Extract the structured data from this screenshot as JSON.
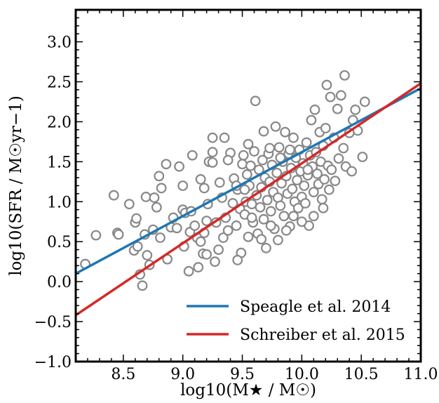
{
  "chart_data": {
    "type": "scatter",
    "title": "",
    "xlabel": "log10(M★ / M☉)",
    "ylabel": "log10(SFR / M☉yr−1)",
    "xlim": [
      8.1,
      11.0
    ],
    "ylim": [
      -1.0,
      3.4
    ],
    "x_ticks": [
      8.5,
      9.0,
      9.5,
      10.0,
      10.5,
      11.0
    ],
    "x_tick_labels": [
      "8.5",
      "9.0",
      "9.5",
      "10.0",
      "10.5",
      "11.0"
    ],
    "y_ticks": [
      -1.0,
      -0.5,
      0.0,
      0.5,
      1.0,
      1.5,
      2.0,
      2.5,
      3.0
    ],
    "y_tick_labels": [
      "−1.0",
      "−0.5",
      "0.0",
      "0.5",
      "1.0",
      "1.5",
      "2.0",
      "2.5",
      "3.0"
    ],
    "grid": false,
    "legend_position": "bottom-right",
    "marker_color": "#888888",
    "points": [
      [
        8.18,
        0.22
      ],
      [
        8.27,
        0.58
      ],
      [
        8.42,
        1.08
      ],
      [
        8.45,
        0.61
      ],
      [
        8.46,
        0.59
      ],
      [
        8.55,
        0.97
      ],
      [
        8.59,
        0.39
      ],
      [
        8.6,
        0.74
      ],
      [
        8.61,
        0.79
      ],
      [
        8.62,
        0.44
      ],
      [
        8.64,
        0.09
      ],
      [
        8.66,
        -0.05
      ],
      [
        8.68,
        0.59
      ],
      [
        8.69,
        1.06
      ],
      [
        8.7,
        0.33
      ],
      [
        8.72,
        0.21
      ],
      [
        8.75,
        0.65
      ],
      [
        8.76,
        1.05
      ],
      [
        8.78,
        0.93
      ],
      [
        8.8,
        1.32
      ],
      [
        8.81,
        0.55
      ],
      [
        8.82,
        1.17
      ],
      [
        8.87,
        0.28
      ],
      [
        8.9,
        0.68
      ],
      [
        8.92,
        0.8
      ],
      [
        8.95,
        0.67
      ],
      [
        9.0,
        0.9
      ],
      [
        9.01,
        0.44
      ],
      [
        9.02,
        0.86
      ],
      [
        9.05,
        0.13
      ],
      [
        9.06,
        0.62
      ],
      [
        9.07,
        0.88
      ],
      [
        9.1,
        0.7
      ],
      [
        9.12,
        0.55
      ],
      [
        9.13,
        0.18
      ],
      [
        9.15,
        0.5
      ],
      [
        9.17,
        0.35
      ],
      [
        9.18,
        0.61
      ],
      [
        9.2,
        0.76
      ],
      [
        9.21,
        0.97
      ],
      [
        9.22,
        1.5
      ],
      [
        9.25,
        1.49
      ],
      [
        9.27,
        0.25
      ],
      [
        9.28,
        0.74
      ],
      [
        9.31,
        1.24
      ],
      [
        9.33,
        1.05
      ],
      [
        9.34,
        0.55
      ],
      [
        9.36,
        0.8
      ],
      [
        9.38,
        0.64
      ],
      [
        9.4,
        1.61
      ],
      [
        9.42,
        0.98
      ],
      [
        9.43,
        1.29
      ],
      [
        9.45,
        0.7
      ],
      [
        9.46,
        1.15
      ],
      [
        9.48,
        0.91
      ],
      [
        9.49,
        0.36
      ],
      [
        9.5,
        1.47
      ],
      [
        9.51,
        1.58
      ],
      [
        9.52,
        0.84
      ],
      [
        9.53,
        1.0
      ],
      [
        9.54,
        1.34
      ],
      [
        9.55,
        0.56
      ],
      [
        9.56,
        1.2
      ],
      [
        9.57,
        1.45
      ],
      [
        9.58,
        0.97
      ],
      [
        9.59,
        0.74
      ],
      [
        9.6,
        1.63
      ],
      [
        9.61,
        2.26
      ],
      [
        9.62,
        1.08
      ],
      [
        9.63,
        0.6
      ],
      [
        9.64,
        1.4
      ],
      [
        9.65,
        0.93
      ],
      [
        9.66,
        1.18
      ],
      [
        9.67,
        1.52
      ],
      [
        9.68,
        0.78
      ],
      [
        9.69,
        1.3
      ],
      [
        9.7,
        0.42
      ],
      [
        9.71,
        1.02
      ],
      [
        9.72,
        1.6
      ],
      [
        9.73,
        1.25
      ],
      [
        9.74,
        0.88
      ],
      [
        9.75,
        1.46
      ],
      [
        9.76,
        1.12
      ],
      [
        9.77,
        0.66
      ],
      [
        9.78,
        1.94
      ],
      [
        9.79,
        1.36
      ],
      [
        9.8,
        1.05
      ],
      [
        9.81,
        1.68
      ],
      [
        9.82,
        0.95
      ],
      [
        9.83,
        1.23
      ],
      [
        9.84,
        1.5
      ],
      [
        9.85,
        0.82
      ],
      [
        9.86,
        1.87
      ],
      [
        9.87,
        1.32
      ],
      [
        9.88,
        1.1
      ],
      [
        9.89,
        1.6
      ],
      [
        9.9,
        0.69
      ],
      [
        9.91,
        1.42
      ],
      [
        9.92,
        1.16
      ],
      [
        9.93,
        1.8
      ],
      [
        9.94,
        1.0
      ],
      [
        9.95,
        1.55
      ],
      [
        9.96,
        1.27
      ],
      [
        9.97,
        0.92
      ],
      [
        9.98,
        1.65
      ],
      [
        9.99,
        1.38
      ],
      [
        10.0,
        1.06
      ],
      [
        10.01,
        1.48
      ],
      [
        10.02,
        1.2
      ],
      [
        10.03,
        0.98
      ],
      [
        10.04,
        1.74
      ],
      [
        10.05,
        1.33
      ],
      [
        10.06,
        0.7
      ],
      [
        10.07,
        1.58
      ],
      [
        10.08,
        2.02
      ],
      [
        10.09,
        1.44
      ],
      [
        10.1,
        1.12
      ],
      [
        10.11,
        2.15
      ],
      [
        10.12,
        1.62
      ],
      [
        10.13,
        1.35
      ],
      [
        10.14,
        1.22
      ],
      [
        10.15,
        1.87
      ],
      [
        10.16,
        1.5
      ],
      [
        10.17,
        1.03
      ],
      [
        10.18,
        1.7
      ],
      [
        10.19,
        1.28
      ],
      [
        10.2,
        1.92
      ],
      [
        10.21,
        2.46
      ],
      [
        10.22,
        1.45
      ],
      [
        10.23,
        1.15
      ],
      [
        10.24,
        2.31
      ],
      [
        10.25,
        1.4
      ],
      [
        10.27,
        1.8
      ],
      [
        10.28,
        1.26
      ],
      [
        10.3,
        2.16
      ],
      [
        10.31,
        1.54
      ],
      [
        10.33,
        2.33
      ],
      [
        10.35,
        1.67
      ],
      [
        10.36,
        2.58
      ],
      [
        10.37,
        1.44
      ],
      [
        10.4,
        1.86
      ],
      [
        10.42,
        1.38
      ],
      [
        10.43,
        2.02
      ],
      [
        10.45,
        2.15
      ],
      [
        10.47,
        1.89
      ],
      [
        10.51,
        1.56
      ],
      [
        10.53,
        2.25
      ],
      [
        9.15,
        1.28
      ],
      [
        9.25,
        1.62
      ],
      [
        9.35,
        1.8
      ],
      [
        9.45,
        1.2
      ],
      [
        9.55,
        1.72
      ],
      [
        9.68,
        1.88
      ],
      [
        9.73,
        1.67
      ],
      [
        9.82,
        1.55
      ],
      [
        9.9,
        1.65
      ],
      [
        10.05,
        1.4
      ],
      [
        8.86,
        1.47
      ],
      [
        8.97,
        1.44
      ],
      [
        9.0,
        1.2
      ],
      [
        9.08,
        1.58
      ],
      [
        9.18,
        1.17
      ],
      [
        9.25,
        1.8
      ],
      [
        9.38,
        1.52
      ],
      [
        9.52,
        1.15
      ],
      [
        9.58,
        0.8
      ],
      [
        9.66,
        0.53
      ],
      [
        9.74,
        0.7
      ],
      [
        9.8,
        0.52
      ],
      [
        9.87,
        0.64
      ],
      [
        9.93,
        0.82
      ],
      [
        10.0,
        0.75
      ],
      [
        10.1,
        0.82
      ],
      [
        10.18,
        0.92
      ],
      [
        9.46,
        0.27
      ],
      [
        9.3,
        0.4
      ],
      [
        9.2,
        0.34
      ]
    ],
    "series": [
      {
        "name": "Speagle et al. 2014",
        "color": "#1f77b4",
        "type": "line",
        "x": [
          8.1,
          11.0
        ],
        "y": [
          0.1,
          2.42
        ]
      },
      {
        "name": "Schreiber et al. 2015",
        "color": "#d62728",
        "type": "line",
        "x": [
          8.1,
          11.0
        ],
        "y": [
          -0.42,
          2.48
        ]
      }
    ]
  }
}
